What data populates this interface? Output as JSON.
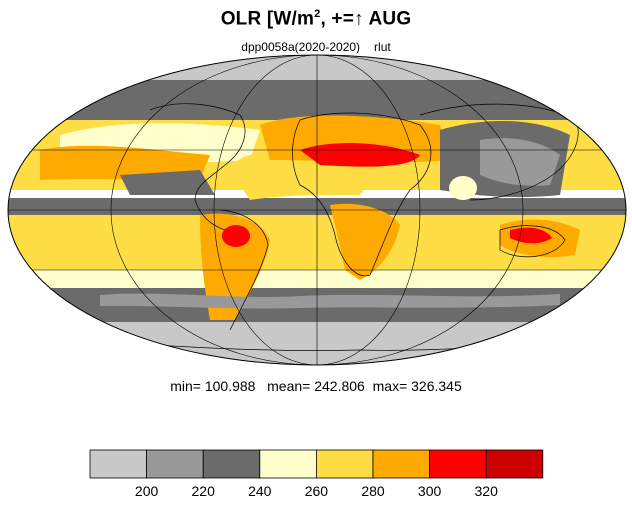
{
  "title": {
    "main_prefix": "OLR [W/m",
    "superscript": "2",
    "main_suffix": ", +=",
    "arrow_glyph": "↑",
    "month": "AUG"
  },
  "subtitle": {
    "left": "dpp0058a(2020-2020)",
    "right": "rlut"
  },
  "stats": {
    "min_label": "min=",
    "min": "100.988",
    "mean_label": "mean=",
    "mean": "242.806",
    "max_label": "max=",
    "max": "326.345"
  },
  "colorbar": {
    "colors": [
      "#c8c8c8",
      "#999999",
      "#6b6b6b",
      "#ffffcc",
      "#ffdd44",
      "#ffaa00",
      "#ff0000",
      "#cc0000"
    ],
    "tick_labels": [
      "200",
      "220",
      "240",
      "260",
      "280",
      "300",
      "320"
    ]
  },
  "map": {
    "projection": "mollweide",
    "variable": "rlut",
    "field_colors": {
      "lt200": "#c8c8c8",
      "200_220": "#999999",
      "220_240": "#6b6b6b",
      "240_260": "#ffffcc",
      "260_280": "#ffdd44",
      "280_300": "#ffaa00",
      "300_320": "#ff0000"
    }
  }
}
